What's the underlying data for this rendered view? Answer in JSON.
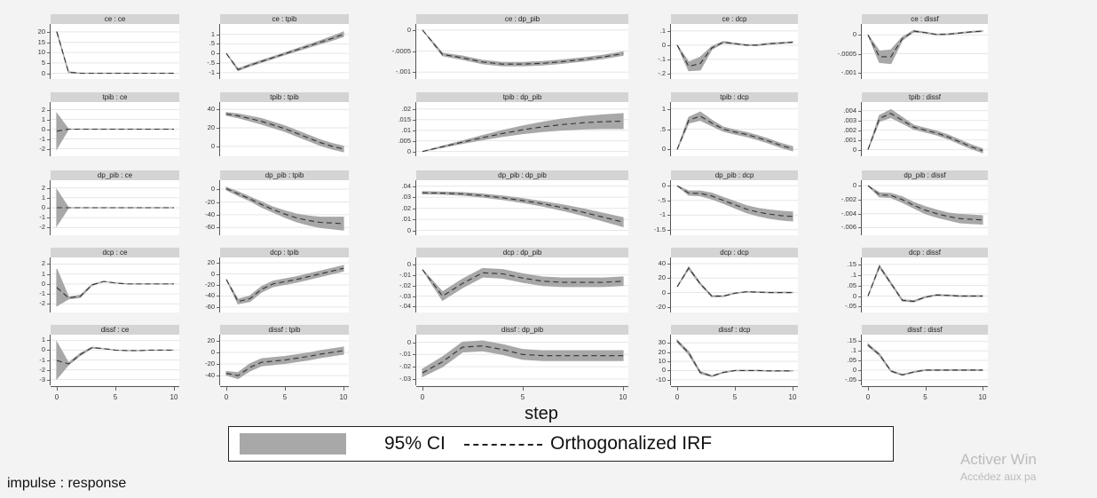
{
  "chart_data": {
    "type": "line",
    "xlabel": "step",
    "x": [
      0,
      1,
      2,
      3,
      4,
      5,
      6,
      7,
      8,
      9,
      10
    ],
    "x_ticks": [
      "0",
      "5",
      "10"
    ],
    "x_tick_values": [
      0,
      5,
      10
    ],
    "xlim": [
      0,
      10
    ],
    "footnote": "impulse : response",
    "legend": {
      "placement": "bottom",
      "ci_label": "95% CI",
      "irf_label": "Orthogonalized IRF"
    },
    "colors": {
      "ci_band": "#a8a8a8",
      "irf_line": "#333333",
      "header": "#d4d4d4"
    },
    "grid": true,
    "panels": [
      {
        "title": "ce : ce",
        "yticks": [
          0,
          5,
          10,
          15,
          20
        ],
        "ytick_labels": [
          "0",
          "5",
          "10",
          "15",
          "20"
        ],
        "ylim": [
          -1.5,
          22.5
        ],
        "irf": [
          20,
          0.5,
          0,
          0,
          0,
          0,
          0,
          0,
          0,
          0,
          0
        ],
        "ci_halfwidth": [
          0.3,
          0.2,
          0,
          0,
          0,
          0,
          0,
          0,
          0,
          0,
          0
        ]
      },
      {
        "title": "ce : tpib",
        "yticks": [
          -1,
          -0.5,
          0,
          0.5,
          1
        ],
        "ytick_labels": [
          "-1",
          "-.5",
          "0",
          ".5",
          "1"
        ],
        "ylim": [
          -1.2,
          1.4
        ],
        "irf": [
          0,
          -0.85,
          -0.62,
          -0.42,
          -0.22,
          -0.02,
          0.18,
          0.38,
          0.58,
          0.78,
          1.0
        ],
        "ci_halfwidth": [
          0,
          0.05,
          0.05,
          0.05,
          0.05,
          0.05,
          0.06,
          0.07,
          0.08,
          0.1,
          0.12
        ]
      },
      {
        "title": "ce : dp_pib",
        "yticks": [
          0,
          -0.0005,
          -0.001
        ],
        "ytick_labels": [
          "0",
          "-.0005",
          "-.001"
        ],
        "ylim": [
          -0.0011,
          8e-05
        ],
        "irf": [
          0,
          -0.00058,
          -0.00066,
          -0.00076,
          -0.00081,
          -0.00081,
          -0.00079,
          -0.00075,
          -0.0007,
          -0.00064,
          -0.00056
        ],
        "ci_halfwidth": [
          0,
          3e-05,
          4e-05,
          4e-05,
          4e-05,
          4e-05,
          4e-05,
          4e-05,
          4e-05,
          4e-05,
          4e-05
        ]
      },
      {
        "title": "ce : dcp",
        "yticks": [
          0.1,
          0,
          -0.1,
          -0.2
        ],
        "ytick_labels": [
          ".1",
          "0",
          "-.1",
          "-.2"
        ],
        "ylim": [
          -0.22,
          0.13
        ],
        "irf": [
          0,
          -0.15,
          -0.13,
          -0.02,
          0.02,
          0.01,
          0,
          0,
          0.01,
          0.015,
          0.02
        ],
        "ci_halfwidth": [
          0,
          0.03,
          0.045,
          0.01,
          0.005,
          0.003,
          0.003,
          0.003,
          0.003,
          0.003,
          0.003
        ]
      },
      {
        "title": "ce : dissf",
        "yticks": [
          0,
          -0.0005,
          -0.001
        ],
        "ytick_labels": [
          "0",
          "-.0005",
          "-.001"
        ],
        "ylim": [
          -0.0011,
          0.00022
        ],
        "irf": [
          0,
          -0.00058,
          -0.00058,
          -0.0001,
          0.0001,
          6e-05,
          1e-05,
          2e-05,
          5e-05,
          8e-05,
          0.0001
        ],
        "ci_halfwidth": [
          0,
          0.00015,
          0.00018,
          4e-05,
          2e-05,
          1e-05,
          1e-05,
          1e-05,
          1e-05,
          1e-05,
          1e-05
        ]
      },
      {
        "title": "tpib : ce",
        "yticks": [
          -2,
          -1,
          0,
          1,
          2
        ],
        "ytick_labels": [
          "-2",
          "-1",
          "0",
          "1",
          "2"
        ],
        "ylim": [
          -2.5,
          2.5
        ],
        "irf": [
          -0.2,
          0,
          0,
          0,
          0,
          0,
          0,
          0,
          0,
          0,
          0
        ],
        "ci_halfwidth": [
          1.8,
          0,
          0,
          0,
          0,
          0,
          0,
          0,
          0,
          0,
          0
        ]
      },
      {
        "title": "tpib : tpib",
        "yticks": [
          0,
          20,
          40
        ],
        "ytick_labels": [
          "0",
          "20",
          "40"
        ],
        "ylim": [
          -8,
          45
        ],
        "irf": [
          35,
          33,
          30,
          27,
          23,
          19,
          14,
          9,
          4,
          0,
          -3
        ],
        "ci_halfwidth": [
          1.5,
          2,
          2.5,
          3,
          3,
          3,
          3,
          3,
          3,
          3,
          3
        ]
      },
      {
        "title": "tpib : dp_pib",
        "yticks": [
          0,
          0.005,
          0.01,
          0.015,
          0.02
        ],
        "ytick_labels": [
          "0",
          ".005",
          ".01",
          ".015",
          ".02"
        ],
        "ylim": [
          -0.001,
          0.022
        ],
        "irf": [
          0,
          0.0022,
          0.0044,
          0.0065,
          0.0085,
          0.0102,
          0.0116,
          0.0127,
          0.0135,
          0.014,
          0.0143
        ],
        "ci_halfwidth": [
          0,
          0.0003,
          0.0006,
          0.001,
          0.0014,
          0.0018,
          0.0022,
          0.0026,
          0.0029,
          0.0032,
          0.0035
        ]
      },
      {
        "title": "tpib : dcp",
        "yticks": [
          0,
          0.5,
          1
        ],
        "ytick_labels": [
          "0",
          ".5",
          "1"
        ],
        "ylim": [
          -0.1,
          1.1
        ],
        "irf": [
          0,
          0.72,
          0.82,
          0.65,
          0.5,
          0.43,
          0.37,
          0.29,
          0.2,
          0.1,
          0.02
        ],
        "ci_halfwidth": [
          0,
          0.07,
          0.1,
          0.07,
          0.05,
          0.05,
          0.05,
          0.05,
          0.05,
          0.05,
          0.05
        ]
      },
      {
        "title": "tpib : dissf",
        "yticks": [
          0,
          0.001,
          0.002,
          0.003,
          0.004
        ],
        "ytick_labels": [
          "0",
          ".001",
          ".002",
          ".003",
          ".004"
        ],
        "ylim": [
          -0.0004,
          0.0046
        ],
        "irf": [
          0,
          0.0032,
          0.0037,
          0.003,
          0.0023,
          0.002,
          0.0017,
          0.0013,
          0.0008,
          0.0003,
          -0.0001
        ],
        "ci_halfwidth": [
          0,
          0.0003,
          0.0004,
          0.0003,
          0.0002,
          0.0002,
          0.0002,
          0.0002,
          0.0002,
          0.0002,
          0.0002
        ]
      },
      {
        "title": "dp_pib : ce",
        "yticks": [
          -2,
          -1,
          0,
          1,
          2
        ],
        "ytick_labels": [
          "-2",
          "-1",
          "0",
          "1",
          "2"
        ],
        "ylim": [
          -2.5,
          2.5
        ],
        "irf": [
          0,
          0,
          0,
          0,
          0,
          0,
          0,
          0,
          0,
          0,
          0
        ],
        "ci_halfwidth": [
          1.8,
          0,
          0,
          0,
          0,
          0,
          0,
          0,
          0,
          0,
          0
        ]
      },
      {
        "title": "dp_pib : tpib",
        "yticks": [
          0,
          -20,
          -40,
          -60
        ],
        "ytick_labels": [
          "0",
          "-20",
          "-40",
          "-60"
        ],
        "ylim": [
          -68,
          10
        ],
        "irf": [
          1,
          -7,
          -15,
          -24,
          -32,
          -39,
          -45,
          -49,
          -52,
          -53,
          -54
        ],
        "ci_halfwidth": [
          2,
          3,
          3,
          4,
          4,
          5,
          6,
          7,
          8,
          9,
          10
        ]
      },
      {
        "title": "dp_pib : dp_pib",
        "yticks": [
          0,
          0.01,
          0.02,
          0.03,
          0.04
        ],
        "ytick_labels": [
          "0",
          ".01",
          ".02",
          ".03",
          ".04"
        ],
        "ylim": [
          -0.002,
          0.043
        ],
        "irf": [
          0.034,
          0.0337,
          0.033,
          0.0315,
          0.0295,
          0.027,
          0.024,
          0.0205,
          0.0165,
          0.012,
          0.0075
        ],
        "ci_halfwidth": [
          0.001,
          0.001,
          0.0012,
          0.0014,
          0.0016,
          0.0018,
          0.002,
          0.0025,
          0.003,
          0.0035,
          0.004
        ]
      },
      {
        "title": "dp_pib : dcp",
        "yticks": [
          0,
          -0.5,
          -1,
          -1.5
        ],
        "ytick_labels": [
          "0",
          "-.5",
          "-1",
          "-1.5"
        ],
        "ylim": [
          -1.6,
          0.1
        ],
        "irf": [
          0,
          -0.25,
          -0.26,
          -0.35,
          -0.5,
          -0.65,
          -0.8,
          -0.9,
          -0.97,
          -1.02,
          -1.05
        ],
        "ci_halfwidth": [
          0,
          0.07,
          0.08,
          0.1,
          0.1,
          0.11,
          0.12,
          0.13,
          0.14,
          0.15,
          0.15
        ]
      },
      {
        "title": "dp_pib : dissf",
        "yticks": [
          0,
          -0.002,
          -0.004,
          -0.006
        ],
        "ytick_labels": [
          "0",
          "-.002",
          "-.004",
          "-.006"
        ],
        "ylim": [
          -0.0067,
          0.0004
        ],
        "irf": [
          0,
          -0.0013,
          -0.0014,
          -0.002,
          -0.0028,
          -0.0035,
          -0.004,
          -0.0044,
          -0.0047,
          -0.0048,
          -0.0049
        ],
        "ci_halfwidth": [
          0,
          0.0003,
          0.0003,
          0.0004,
          0.0004,
          0.0005,
          0.0005,
          0.0005,
          0.0006,
          0.0006,
          0.0006
        ]
      },
      {
        "title": "dcp : ce",
        "yticks": [
          -2,
          -1,
          0,
          1,
          2
        ],
        "ytick_labels": [
          "-2",
          "-1",
          "0",
          "1",
          "2"
        ],
        "ylim": [
          -2.6,
          2.4
        ],
        "irf": [
          -0.35,
          -1.4,
          -1.25,
          -0.1,
          0.25,
          0.1,
          0,
          0,
          0,
          0,
          0
        ],
        "ci_halfwidth": [
          1.85,
          0.1,
          0.1,
          0.05,
          0,
          0,
          0,
          0,
          0,
          0,
          0
        ]
      },
      {
        "title": "dcp : tpib",
        "yticks": [
          20,
          0,
          -20,
          -40,
          -60
        ],
        "ytick_labels": [
          "20",
          "0",
          "-20",
          "-40",
          "-60"
        ],
        "ylim": [
          -65,
          25
        ],
        "irf": [
          -10,
          -50,
          -45,
          -28,
          -18,
          -14,
          -10,
          -5,
          0,
          5,
          10
        ],
        "ci_halfwidth": [
          0,
          4,
          5,
          5,
          5,
          5,
          5,
          5,
          5,
          5,
          5
        ]
      },
      {
        "title": "dcp : dp_pib",
        "yticks": [
          0,
          -0.01,
          -0.02,
          -0.03,
          -0.04
        ],
        "ytick_labels": [
          "0",
          "-.01",
          "-.02",
          "-.03",
          "-.04"
        ],
        "ylim": [
          -0.043,
          0.004
        ],
        "irf": [
          -0.005,
          -0.03,
          -0.018,
          -0.008,
          -0.009,
          -0.013,
          -0.016,
          -0.017,
          -0.017,
          -0.017,
          -0.016
        ],
        "ci_halfwidth": [
          0,
          0.004,
          0.004,
          0.004,
          0.004,
          0.004,
          0.004,
          0.004,
          0.004,
          0.004,
          0.004
        ]
      },
      {
        "title": "dcp : dcp",
        "yticks": [
          40,
          20,
          0,
          -20
        ],
        "ytick_labels": [
          "40",
          "20",
          "0",
          "-20"
        ],
        "ylim": [
          -24,
          45
        ],
        "irf": [
          8,
          34,
          12,
          -5,
          -5,
          -1,
          1,
          0.5,
          0,
          0,
          0
        ],
        "ci_halfwidth": [
          0,
          1.5,
          1,
          0.8,
          0.5,
          0.3,
          0.3,
          0.3,
          0.3,
          0.3,
          0.3
        ]
      },
      {
        "title": "dcp : dissf",
        "yticks": [
          0.15,
          0.1,
          0.05,
          0,
          -0.05
        ],
        "ytick_labels": [
          ".15",
          ".1",
          ".05",
          "0",
          "-.05"
        ],
        "ylim": [
          -0.065,
          0.17
        ],
        "irf": [
          0,
          0.14,
          0.06,
          -0.02,
          -0.025,
          -0.005,
          0.005,
          0.003,
          0,
          0,
          0
        ],
        "ci_halfwidth": [
          0,
          0.005,
          0.004,
          0.003,
          0.003,
          0.002,
          0.002,
          0.002,
          0.002,
          0.002,
          0.002
        ]
      },
      {
        "title": "dissf : ce",
        "yticks": [
          1,
          0,
          -1,
          -2,
          -3
        ],
        "ytick_labels": [
          "1",
          "0",
          "-1",
          "-2",
          "-3"
        ],
        "ylim": [
          -3.3,
          1.3
        ],
        "irf": [
          -1.05,
          -1.4,
          -0.45,
          0.25,
          0.15,
          0,
          -0.05,
          -0.05,
          0,
          0,
          0
        ],
        "ci_halfwidth": [
          1.85,
          0.1,
          0.1,
          0.05,
          0,
          0,
          0,
          0,
          0,
          0,
          0
        ]
      },
      {
        "title": "dissf : tpib",
        "yticks": [
          20,
          0,
          -20,
          -40
        ],
        "ytick_labels": [
          "20",
          "0",
          "-20",
          "-40"
        ],
        "ylim": [
          -52,
          26
        ],
        "irf": [
          -36,
          -40,
          -26,
          -17,
          -15,
          -13,
          -10,
          -7,
          -3,
          0,
          3
        ],
        "ci_halfwidth": [
          3,
          5,
          6,
          6,
          6,
          6,
          6,
          6,
          6,
          6,
          6
        ]
      },
      {
        "title": "dissf : dp_pib",
        "yticks": [
          0,
          -0.01,
          -0.02,
          -0.03
        ],
        "ytick_labels": [
          "0",
          "-.01",
          "-.02",
          "-.03"
        ],
        "ylim": [
          -0.033,
          0.004
        ],
        "irf": [
          -0.025,
          -0.016,
          -0.004,
          -0.003,
          -0.006,
          -0.01,
          -0.011,
          -0.011,
          -0.011,
          -0.011,
          -0.011
        ],
        "ci_halfwidth": [
          0.003,
          0.004,
          0.004,
          0.004,
          0.004,
          0.004,
          0.004,
          0.004,
          0.004,
          0.004,
          0.004
        ]
      },
      {
        "title": "dissf : dcp",
        "yticks": [
          30,
          20,
          10,
          0,
          -10
        ],
        "ytick_labels": [
          "30",
          "20",
          "10",
          "0",
          "-10"
        ],
        "ylim": [
          -13,
          36
        ],
        "irf": [
          32,
          19,
          -2,
          -6,
          -2,
          0,
          0,
          0,
          -0.3,
          -0.3,
          -0.3
        ],
        "ci_halfwidth": [
          1,
          1.5,
          1,
          0.5,
          0.3,
          0.2,
          0.2,
          0.2,
          0.2,
          0.2,
          0.2
        ]
      },
      {
        "title": "dissf : dissf",
        "yticks": [
          0.15,
          0.1,
          0.05,
          0,
          -0.05
        ],
        "ytick_labels": [
          ".15",
          ".1",
          ".05",
          "0",
          "-.05"
        ],
        "ylim": [
          -0.065,
          0.17
        ],
        "irf": [
          0.13,
          0.08,
          -0.005,
          -0.025,
          -0.01,
          0,
          0,
          0,
          0,
          0,
          0
        ],
        "ci_halfwidth": [
          0.005,
          0.005,
          0.003,
          0.002,
          0.002,
          0.002,
          0.002,
          0.002,
          0.002,
          0.002,
          0.002
        ]
      }
    ]
  },
  "watermark": {
    "line1": "Activer Win",
    "line2": "Accédez aux pa"
  }
}
